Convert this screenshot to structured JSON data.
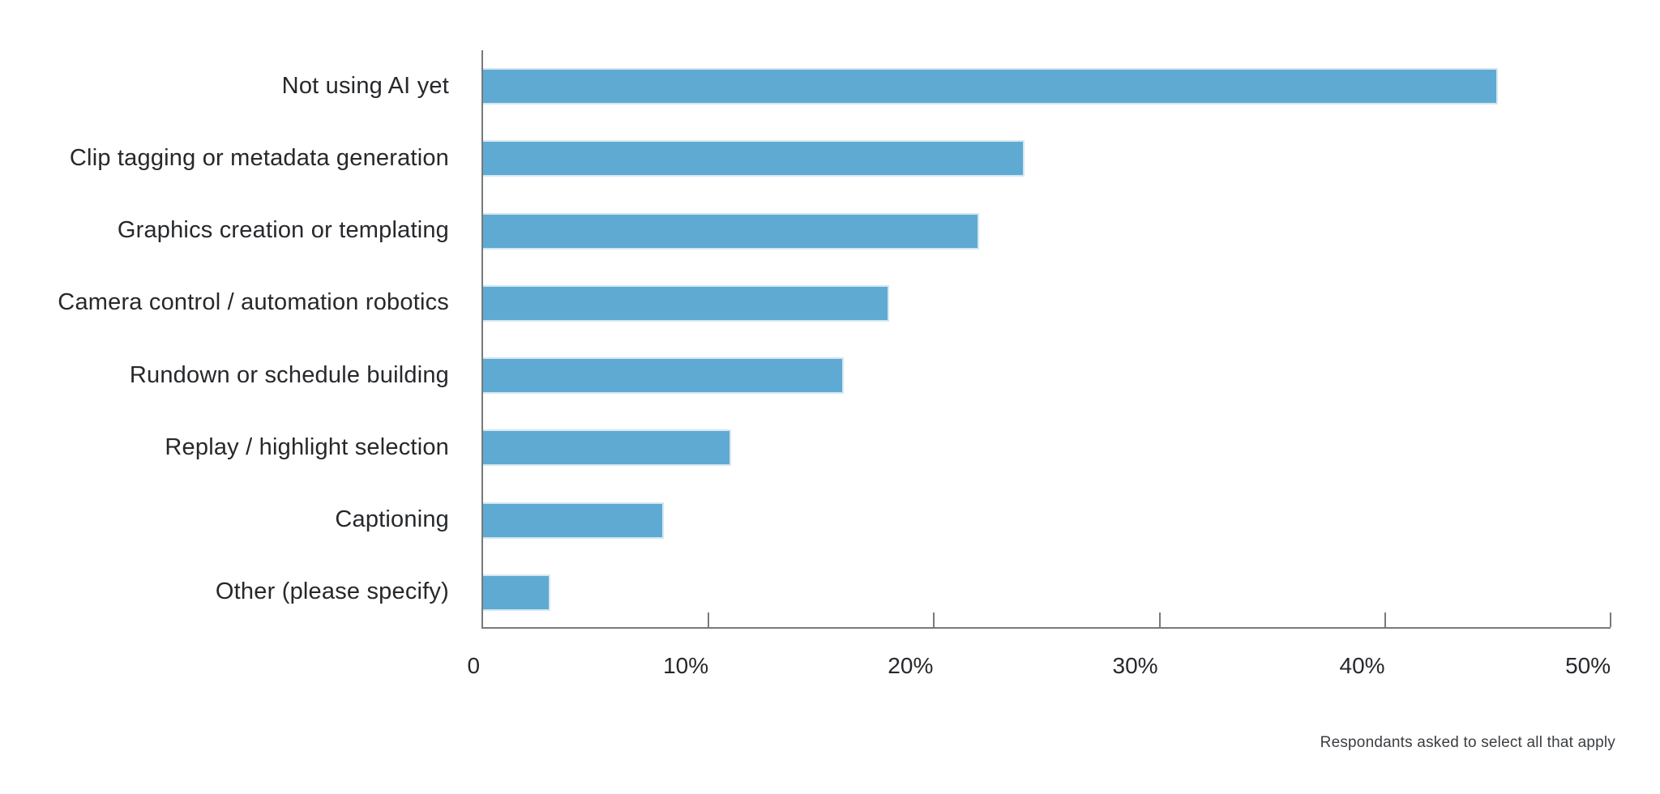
{
  "figure": {
    "footnote": "Respondants asked to select all that apply"
  },
  "chart_data": {
    "type": "bar",
    "orientation": "horizontal",
    "title": "",
    "categories": [
      "Not using AI yet",
      "Clip tagging or metadata generation",
      "Graphics creation or templating",
      "Camera control / automation robotics",
      "Rundown or schedule building",
      "Replay / highlight selection",
      "Captioning",
      "Other (please specify)"
    ],
    "values": [
      45,
      24,
      22,
      18,
      16,
      11,
      8,
      3
    ],
    "unit": "%",
    "xlim": [
      0,
      50
    ],
    "x_tick_labels": [
      "0",
      "10%",
      "20%",
      "30%",
      "40%",
      "50%"
    ],
    "grid": false,
    "legend": "none",
    "bar_color": "#5FAAD2",
    "bar_edge_color": "#D4E7F2",
    "axis_color": "#77797C",
    "text_color": "#26282B",
    "annotations": [
      "Respondants asked to select all that apply"
    ]
  }
}
